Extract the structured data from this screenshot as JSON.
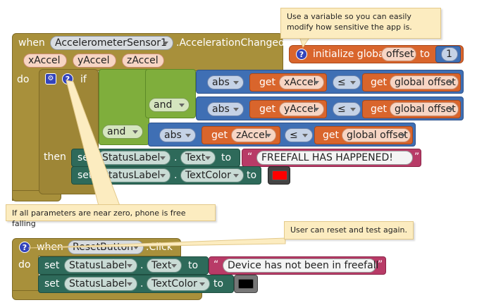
{
  "comments": {
    "variable": "Use a variable so you can easily modify how sensitive the app is.",
    "freefall": "If all parameters are near zero, phone is free falling",
    "reset": "User can reset and test again."
  },
  "event1": {
    "when": "when",
    "component": "AccelerometerSensor1",
    "event": ".AccelerationChanged",
    "params": [
      "xAccel",
      "yAccel",
      "zAccel"
    ],
    "do": "do",
    "if": "if",
    "then": "then",
    "and": "and",
    "abs": "abs",
    "get": "get",
    "lte": "≤",
    "global_offset": "global offset",
    "set": "set",
    "status_label": "StatusLabel",
    "dot": ".",
    "text_prop": "Text",
    "textcolor_prop": "TextColor",
    "to": "to",
    "freefall_text": "FREEFALL HAS HAPPENED!",
    "red_color": "#ff0000"
  },
  "global": {
    "initialize": "initialize global",
    "name": "offset",
    "to": "to",
    "value": "1"
  },
  "event2": {
    "when": "when",
    "component": "ResetButton",
    "event": ".Click",
    "do": "do",
    "set": "set",
    "status_label": "StatusLabel",
    "dot": ".",
    "text_prop": "Text",
    "textcolor_prop": "TextColor",
    "to": "to",
    "reset_text": "Device has not been in freefall",
    "black_color": "#000000"
  },
  "icons": [
    "question-icon",
    "gear-icon"
  ]
}
